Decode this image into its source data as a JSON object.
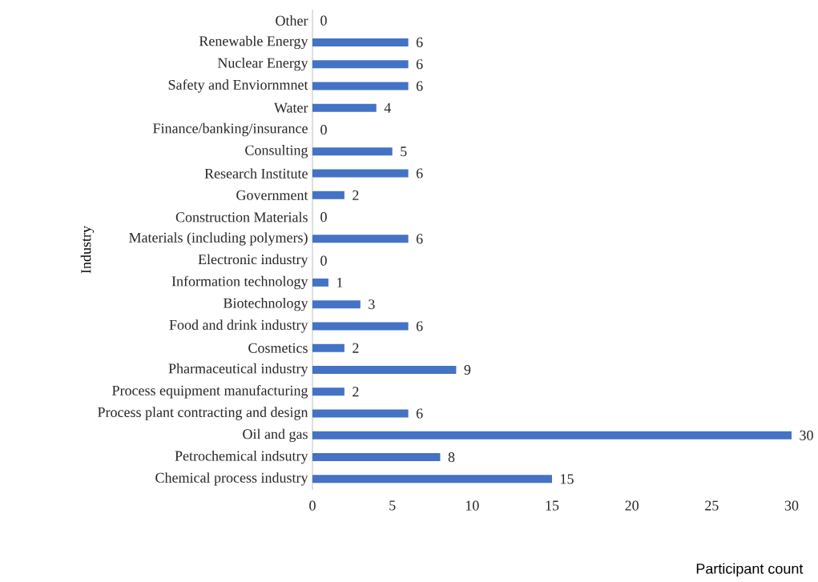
{
  "chart_data": {
    "type": "bar",
    "orientation": "horizontal",
    "xlabel": "Participant count",
    "ylabel": "Industry",
    "categories": [
      "Other",
      "Renewable Energy",
      "Nuclear Energy",
      "Safety and Enviornmnet",
      "Water",
      "Finance/banking/insurance",
      "Consulting",
      "Research Institute",
      "Government",
      "Construction Materials",
      "Materials (including polymers)",
      "Electronic industry",
      "Information technology",
      "Biotechnology",
      "Food and drink industry",
      "Cosmetics",
      "Pharmaceutical industry",
      "Process equipment manufacturing",
      "Process plant contracting and design",
      "Oil and gas",
      "Petrochemical indsutry",
      "Chemical process industry"
    ],
    "values": [
      0,
      6,
      6,
      6,
      4,
      0,
      5,
      6,
      2,
      0,
      6,
      0,
      1,
      3,
      6,
      2,
      9,
      2,
      6,
      30,
      8,
      15
    ],
    "color": "#4472c4",
    "data_labels": true,
    "xlim": [
      0,
      30
    ],
    "xticks": [
      0,
      5,
      10,
      15,
      20,
      25,
      30
    ]
  }
}
